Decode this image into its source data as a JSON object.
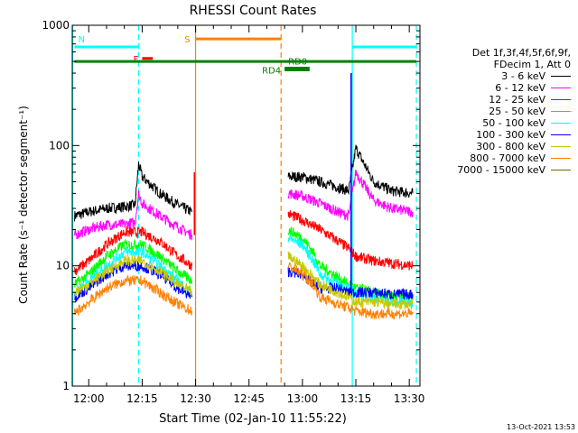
{
  "chart_data": {
    "type": "line",
    "title": "RHESSI Count Rates",
    "xlabel": "Start Time (02-Jan-10 11:55:22)",
    "ylabel": "Count Rate (s⁻¹ detector segment⁻¹)",
    "yscale": "log",
    "ylim": [
      1,
      1000
    ],
    "xlim": [
      "11:55:22",
      "13:33:00"
    ],
    "x_ticks": [
      "12:00",
      "12:15",
      "12:30",
      "12:45",
      "13:00",
      "13:15",
      "13:30"
    ],
    "y_ticks": [
      "1",
      "10",
      "100",
      "1000"
    ],
    "legend_header": [
      "Det 1f,3f,4f,5f,6f,9f,",
      "FDecim 1, Att 0"
    ],
    "series": [
      {
        "name": "3 - 6 keV",
        "color": "#000000",
        "segments": [
          {
            "t": [
              "11:56",
              "12:00",
              "12:05",
              "12:10",
              "12:13",
              "12:14",
              "12:15",
              "12:20",
              "12:25",
              "12:29"
            ],
            "v": [
              26,
              28,
              30,
              31,
              32,
              70,
              55,
              40,
              32,
              28
            ]
          },
          {
            "t": [
              "12:56",
              "13:00",
              "13:05",
              "13:10",
              "13:13",
              "13:15",
              "13:20",
              "13:25",
              "13:31"
            ],
            "v": [
              55,
              55,
              50,
              45,
              42,
              95,
              50,
              42,
              40
            ]
          }
        ]
      },
      {
        "name": "6 - 12 keV",
        "color": "#ff00ff",
        "segments": [
          {
            "t": [
              "11:56",
              "12:00",
              "12:05",
              "12:10",
              "12:13",
              "12:14",
              "12:15",
              "12:20",
              "12:25",
              "12:29"
            ],
            "v": [
              18,
              20,
              22,
              22,
              23,
              40,
              33,
              26,
              21,
              18
            ]
          },
          {
            "t": [
              "12:56",
              "13:00",
              "13:05",
              "13:10",
              "13:13",
              "13:15",
              "13:20",
              "13:25",
              "13:31"
            ],
            "v": [
              40,
              38,
              33,
              28,
              26,
              60,
              35,
              30,
              28
            ]
          }
        ]
      },
      {
        "name": "12 - 25 keV",
        "color": "#ff0000",
        "segments": [
          {
            "t": [
              "11:56",
              "12:00",
              "12:05",
              "12:10",
              "12:15",
              "12:20",
              "12:25",
              "12:29"
            ],
            "v": [
              9,
              11,
              15,
              19,
              19,
              16,
              12,
              10
            ]
          },
          {
            "t": [
              "12:56",
              "13:00",
              "13:05",
              "13:10",
              "13:13",
              "13:15",
              "13:20",
              "13:25",
              "13:31"
            ],
            "v": [
              27,
              24,
              20,
              16,
              14,
              12,
              11,
              10.5,
              10
            ]
          }
        ]
      },
      {
        "name": "25 - 50 keV",
        "color": "#00ff00",
        "segments": [
          {
            "t": [
              "11:56",
              "12:00",
              "12:05",
              "12:10",
              "12:15",
              "12:20",
              "12:25",
              "12:29"
            ],
            "v": [
              7,
              8.5,
              12,
              15,
              15,
              12,
              9,
              7.5
            ]
          },
          {
            "t": [
              "12:56",
              "13:00",
              "13:03",
              "13:05",
              "13:10",
              "13:13",
              "13:15",
              "13:20",
              "13:25",
              "13:31"
            ],
            "v": [
              20,
              17,
              13,
              10,
              8,
              7,
              6.5,
              6,
              5.5,
              5.5
            ]
          }
        ]
      },
      {
        "name": "50 - 100 keV",
        "color": "#00ffff",
        "segments": [
          {
            "t": [
              "11:56",
              "12:00",
              "12:05",
              "12:10",
              "12:15",
              "12:20",
              "12:25",
              "12:29"
            ],
            "v": [
              6,
              7.5,
              10,
              13,
              13,
              10,
              7.5,
              6
            ]
          },
          {
            "t": [
              "12:56",
              "13:00",
              "13:03",
              "13:05",
              "13:10",
              "13:13",
              "13:15",
              "13:20",
              "13:25",
              "13:31"
            ],
            "v": [
              17,
              15,
              11,
              8.5,
              7,
              6.5,
              6,
              5.5,
              5,
              5
            ]
          }
        ]
      },
      {
        "name": "100 - 300 keV",
        "color": "#0000ff",
        "segments": [
          {
            "t": [
              "11:56",
              "12:00",
              "12:05",
              "12:10",
              "12:15",
              "12:20",
              "12:25",
              "12:29"
            ],
            "v": [
              5.5,
              6.5,
              8.5,
              10,
              10,
              8.5,
              6.5,
              5.5
            ]
          },
          {
            "t": [
              "12:56",
              "13:00",
              "13:03",
              "13:05",
              "13:10",
              "13:13",
              "13:15",
              "13:20",
              "13:25",
              "13:31"
            ],
            "v": [
              9,
              8.5,
              7,
              6.5,
              6.5,
              6,
              6,
              6,
              5.8,
              5.8
            ]
          }
        ]
      },
      {
        "name": "300 - 800 keV",
        "color": "#c8c800",
        "segments": [
          {
            "t": [
              "11:56",
              "12:00",
              "12:05",
              "12:10",
              "12:15",
              "12:20",
              "12:25",
              "12:29"
            ],
            "v": [
              6,
              7,
              9,
              11,
              11,
              9,
              7,
              6
            ]
          },
          {
            "t": [
              "12:56",
              "13:00",
              "13:03",
              "13:05",
              "13:10",
              "13:13",
              "13:15",
              "13:20",
              "13:25",
              "13:31"
            ],
            "v": [
              12,
              10,
              8,
              7,
              6,
              5.5,
              5,
              5,
              4.8,
              4.8
            ]
          }
        ]
      },
      {
        "name": "800 - 7000 keV",
        "color": "#ff8000",
        "segments": [
          {
            "t": [
              "11:56",
              "12:00",
              "12:05",
              "12:10",
              "12:15",
              "12:20",
              "12:25",
              "12:29"
            ],
            "v": [
              4,
              5,
              6.5,
              7.5,
              7.5,
              6,
              4.8,
              4.2
            ]
          },
          {
            "t": [
              "12:56",
              "13:00",
              "13:03",
              "13:05",
              "13:10",
              "13:13",
              "13:15",
              "13:20",
              "13:25",
              "13:31"
            ],
            "v": [
              10,
              8.5,
              7,
              5.5,
              4.8,
              4.5,
              4.2,
              4,
              4,
              4
            ]
          }
        ]
      },
      {
        "name": "7000 - 15000 keV",
        "color": "#806000",
        "segments": []
      }
    ],
    "markers": [
      {
        "label": "N",
        "color": "#00ffff",
        "t_start": "11:56",
        "t_end": "12:14",
        "y": 660
      },
      {
        "label": "",
        "color": "#00ffff",
        "t_start": "13:14",
        "t_end": "13:32",
        "y": 660
      },
      {
        "label": "F",
        "color": "#ff0000",
        "t_start": "12:15",
        "t_end": "12:18",
        "y": 530
      },
      {
        "label": "S",
        "color": "#ff8000",
        "t_start": "12:30",
        "t_end": "12:54",
        "y": 770
      },
      {
        "label": "RD4",
        "color": "#008000",
        "t_start": "12:55",
        "t_end": "13:02",
        "y": 425
      },
      {
        "label": "RD0",
        "color": "#008000",
        "t_start": "12:55",
        "t_end": "13:02",
        "y": 440
      },
      {
        "label": "",
        "color": "#008000",
        "t_start": "11:56",
        "t_end": "13:32",
        "y": 500
      }
    ],
    "vlines": [
      {
        "t": "11:55:30",
        "color": "#00ffff",
        "style": "solid"
      },
      {
        "t": "12:14",
        "color": "#00ffff",
        "style": "dashed"
      },
      {
        "t": "12:30",
        "color": "#ff8000",
        "style": "solid"
      },
      {
        "t": "12:54",
        "color": "#ff8000",
        "style": "dashed"
      },
      {
        "t": "13:14",
        "color": "#00ffff",
        "style": "solid"
      },
      {
        "t": "13:32",
        "color": "#00ffff",
        "style": "dashed"
      }
    ],
    "grid": false,
    "legend_position": "right"
  },
  "timestamp": "13-Oct-2021 13:53"
}
